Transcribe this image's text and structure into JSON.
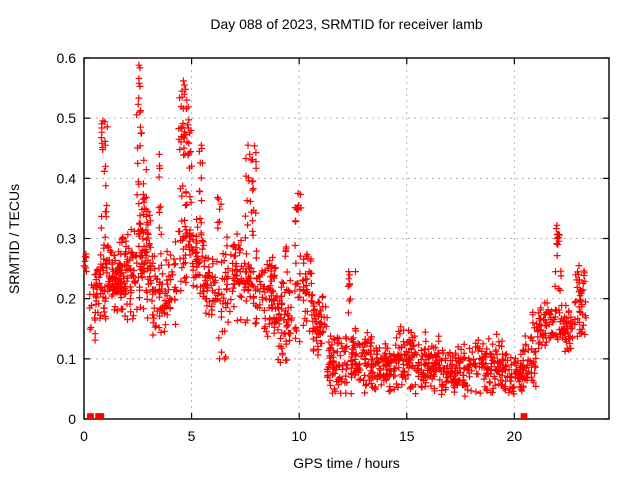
{
  "chart": {
    "title": "Day 088 of 2023, SRMTID for receiver lamb",
    "xlabel": "GPS time / hours",
    "ylabel": "SRMTID / TECUs"
  },
  "chart_data": {
    "type": "scatter",
    "title": "Day 088 of 2023, SRMTID for receiver lamb",
    "xlabel": "GPS time / hours",
    "ylabel": "SRMTID / TECUs",
    "xlim": [
      0,
      24.4
    ],
    "ylim": [
      0,
      0.6
    ],
    "xticks": {
      "values": [
        0,
        5,
        10,
        15,
        20
      ],
      "labels": [
        "0",
        "5",
        "10",
        "15",
        "20"
      ]
    },
    "yticks": {
      "values": [
        0,
        0.1,
        0.2,
        0.3,
        0.4,
        0.5,
        0.6
      ],
      "labels": [
        "0",
        "0.1",
        "0.2",
        "0.3",
        "0.4",
        "0.5",
        "0.6"
      ]
    },
    "grid": {
      "show": true,
      "style": "dotted",
      "color": "#b0b0b0"
    },
    "legend": "none",
    "marker": {
      "symbol": "plus",
      "color": "#ff0000"
    },
    "series_notes": "dense GPS ionosphere scatter: high variance 0.12-0.59 TECUs before hour ~11, quiet band 0.03-0.16 hours 11-20.5, rising again to ~0.32 by hour 23.3; red filled squares near zero mark data flags",
    "peak_points": [
      [
        0.05,
        0.262
      ],
      [
        0.06,
        0.27
      ],
      [
        0.97,
        0.494
      ],
      [
        0.99,
        0.455
      ],
      [
        1.0,
        0.42
      ],
      [
        2.52,
        0.523
      ],
      [
        2.55,
        0.588
      ],
      [
        2.55,
        0.566
      ],
      [
        2.56,
        0.558
      ],
      [
        2.6,
        0.51
      ],
      [
        2.62,
        0.485
      ],
      [
        2.78,
        0.43
      ],
      [
        3.5,
        0.44
      ],
      [
        4.55,
        0.545
      ],
      [
        4.62,
        0.562
      ],
      [
        4.66,
        0.555
      ],
      [
        4.72,
        0.548
      ],
      [
        4.78,
        0.53
      ],
      [
        5.45,
        0.455
      ],
      [
        6.3,
        0.1
      ],
      [
        7.62,
        0.455
      ],
      [
        7.7,
        0.44
      ],
      [
        9.95,
        0.375
      ],
      [
        9.97,
        0.355
      ],
      [
        12.3,
        0.245
      ],
      [
        12.62,
        0.245
      ],
      [
        21.98,
        0.322
      ],
      [
        22.0,
        0.3
      ],
      [
        22.02,
        0.29
      ],
      [
        23.0,
        0.255
      ]
    ],
    "square_points": [
      [
        0.3,
        0.004
      ],
      [
        0.68,
        0.004
      ],
      [
        0.78,
        0.004
      ],
      [
        20.45,
        0.004
      ]
    ],
    "cluster_seed": 1234567,
    "clusters": [
      [
        0.0,
        0.12,
        0.245,
        0.275,
        6,
        1
      ],
      [
        0.25,
        0.5,
        0.13,
        0.23,
        10,
        1
      ],
      [
        0.5,
        0.8,
        0.12,
        0.3,
        30,
        2
      ],
      [
        0.8,
        1.1,
        0.25,
        0.5,
        22,
        1
      ],
      [
        0.8,
        1.6,
        0.16,
        0.3,
        80,
        2
      ],
      [
        1.6,
        2.4,
        0.15,
        0.33,
        90,
        2
      ],
      [
        2.45,
        2.7,
        0.3,
        0.59,
        20,
        1
      ],
      [
        2.4,
        3.1,
        0.16,
        0.36,
        70,
        2
      ],
      [
        2.7,
        2.9,
        0.33,
        0.44,
        10,
        1
      ],
      [
        3.1,
        4.3,
        0.13,
        0.3,
        90,
        2
      ],
      [
        3.45,
        3.6,
        0.3,
        0.44,
        8,
        1
      ],
      [
        4.4,
        5.0,
        0.4,
        0.565,
        35,
        2
      ],
      [
        4.4,
        5.0,
        0.2,
        0.42,
        45,
        2
      ],
      [
        5.0,
        5.6,
        0.17,
        0.35,
        50,
        2
      ],
      [
        5.35,
        5.55,
        0.35,
        0.46,
        8,
        1
      ],
      [
        5.6,
        6.2,
        0.15,
        0.3,
        45,
        2
      ],
      [
        6.2,
        6.6,
        0.095,
        0.38,
        30,
        1
      ],
      [
        6.6,
        7.5,
        0.15,
        0.31,
        60,
        2
      ],
      [
        7.5,
        8.0,
        0.29,
        0.455,
        25,
        1
      ],
      [
        7.5,
        8.1,
        0.15,
        0.3,
        40,
        2
      ],
      [
        8.1,
        9.0,
        0.12,
        0.28,
        70,
        2
      ],
      [
        9.0,
        9.7,
        0.065,
        0.25,
        55,
        2
      ],
      [
        9.3,
        9.45,
        0.24,
        0.29,
        6,
        1
      ],
      [
        9.8,
        10.1,
        0.12,
        0.375,
        25,
        1
      ],
      [
        10.15,
        10.6,
        0.14,
        0.3,
        35,
        2
      ],
      [
        10.6,
        11.3,
        0.09,
        0.22,
        55,
        2
      ],
      [
        11.3,
        12.25,
        0.035,
        0.15,
        80,
        2
      ],
      [
        12.28,
        12.38,
        0.16,
        0.245,
        8,
        1
      ],
      [
        12.4,
        13.4,
        0.04,
        0.16,
        85,
        2
      ],
      [
        13.4,
        14.5,
        0.035,
        0.135,
        85,
        2
      ],
      [
        14.5,
        15.4,
        0.04,
        0.16,
        80,
        2
      ],
      [
        15.4,
        16.5,
        0.035,
        0.15,
        85,
        2
      ],
      [
        16.5,
        18.0,
        0.03,
        0.125,
        110,
        2
      ],
      [
        18.0,
        19.5,
        0.035,
        0.148,
        105,
        2
      ],
      [
        19.5,
        20.4,
        0.03,
        0.115,
        65,
        2
      ],
      [
        20.4,
        21.0,
        0.04,
        0.15,
        45,
        2
      ],
      [
        20.85,
        20.95,
        0.15,
        0.18,
        4,
        1
      ],
      [
        21.0,
        21.85,
        0.1,
        0.21,
        55,
        2
      ],
      [
        21.9,
        22.2,
        0.13,
        0.325,
        30,
        1
      ],
      [
        22.2,
        22.75,
        0.1,
        0.2,
        40,
        2
      ],
      [
        22.8,
        23.2,
        0.12,
        0.26,
        35,
        2
      ],
      [
        23.2,
        23.35,
        0.14,
        0.25,
        10,
        1
      ]
    ],
    "colors": {
      "marker": "#ff0000",
      "frame": "#000000",
      "grid": "#b0b0b0",
      "background": "#ffffff"
    }
  }
}
